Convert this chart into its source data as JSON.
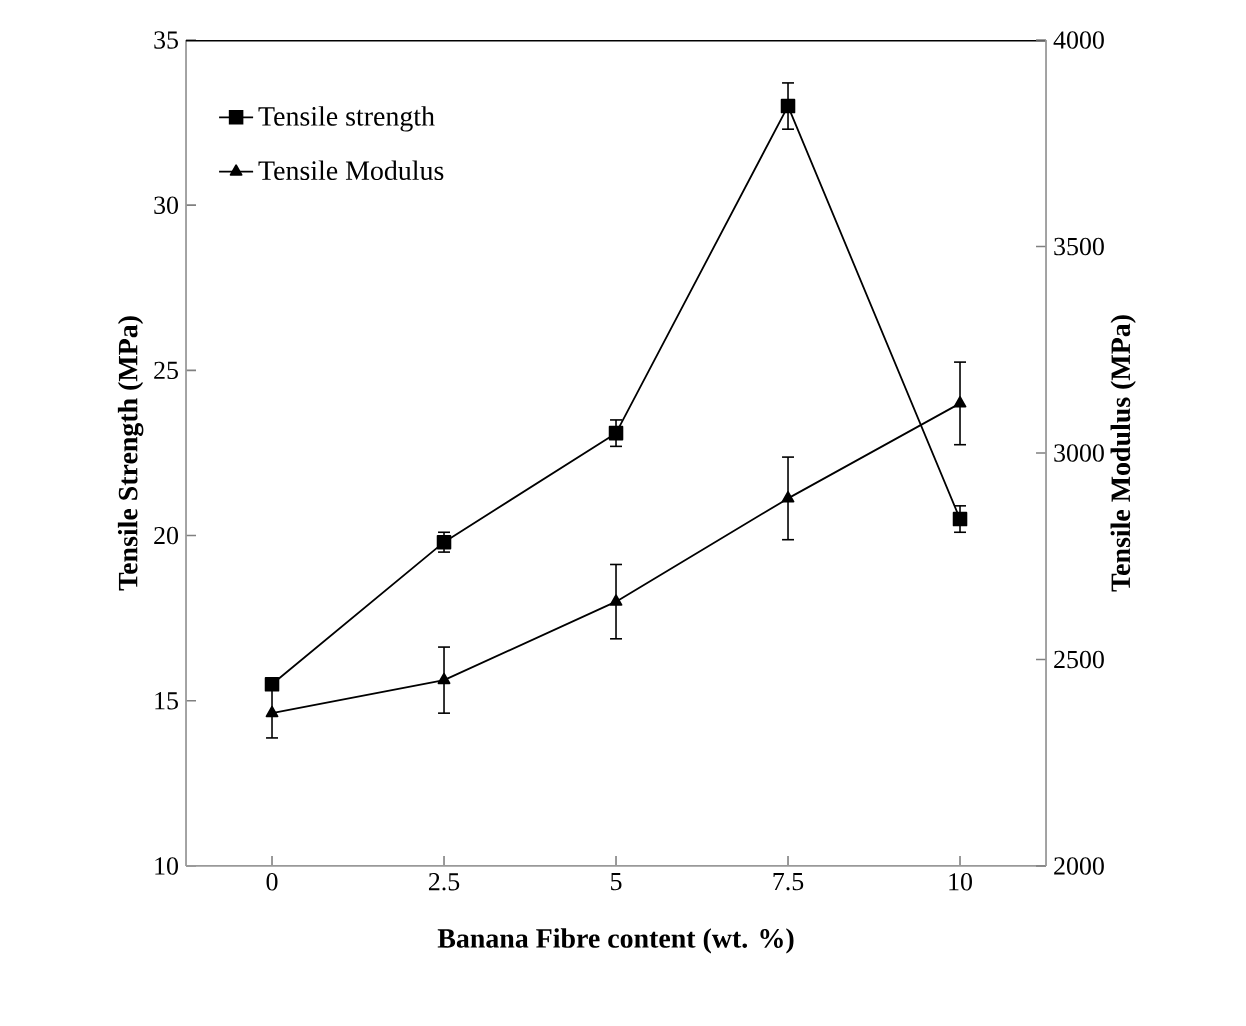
{
  "chart_data": {
    "type": "line",
    "xlabel": "Banana Fibre content (wt. %)",
    "ylabel": "Tensile Strength (MPa)",
    "y2label": "Tensile Modulus (MPa)",
    "x": [
      0,
      2.5,
      5,
      7.5,
      10
    ],
    "xlim": [
      -1.25,
      11.25
    ],
    "xticks": [
      0,
      2.5,
      5,
      7.5,
      10
    ],
    "ylim": [
      10,
      35
    ],
    "yticks": [
      10,
      15,
      20,
      25,
      30,
      35
    ],
    "y2lim": [
      2000,
      4000
    ],
    "y2ticks": [
      2000,
      2500,
      3000,
      3500,
      4000
    ],
    "legend": "top left",
    "grid": false,
    "line_style": "solid",
    "series": [
      {
        "name": "Tensile strength",
        "color": "#000000",
        "marker": "square",
        "values": [
          15.5,
          19.8,
          23.1,
          33.0,
          20.5
        ],
        "errors": [
          null,
          0.3,
          0.4,
          0.7,
          0.4
        ]
      },
      {
        "name": "Tensile Modulus",
        "color": "#000000",
        "marker": "triangle",
        "axis": "y2",
        "values": [
          2370,
          2450,
          2640,
          2890,
          3120
        ],
        "errors": [
          60,
          80,
          90,
          100,
          100
        ]
      }
    ]
  }
}
